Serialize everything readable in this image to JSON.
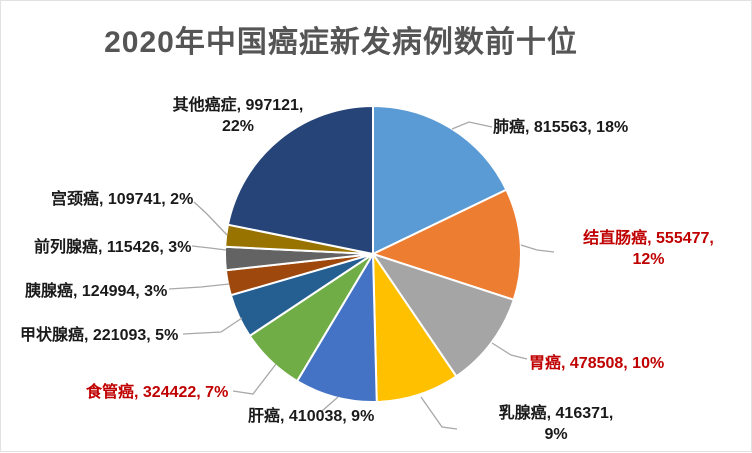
{
  "chart_data": {
    "type": "pie",
    "title": "2020年中国癌症新发病例数前十位",
    "start_angle_deg": 0,
    "direction": "clockwise",
    "legend": "none",
    "leader_line_color": "#A8A8A8",
    "highlight_label_color": "#C00000",
    "default_label_color": "#1A1A1A",
    "slices": [
      {
        "name": "肺癌",
        "value": 815563,
        "percent": "18%",
        "color": "#5B9BD5",
        "label_color": "#1A1A1A",
        "label_lines": [
          "肺癌, 815563, 18%"
        ]
      },
      {
        "name": "结直肠癌",
        "value": 555477,
        "percent": "12%",
        "color": "#ED7D31",
        "label_color": "#C00000",
        "label_lines": [
          "结直肠癌, 555477,",
          "12%"
        ]
      },
      {
        "name": "胃癌",
        "value": 478508,
        "percent": "10%",
        "color": "#A5A5A5",
        "label_color": "#C00000",
        "label_lines": [
          "胃癌, 478508, 10%"
        ]
      },
      {
        "name": "乳腺癌",
        "value": 416371,
        "percent": "9%",
        "color": "#FFC000",
        "label_color": "#1A1A1A",
        "label_lines": [
          "乳腺癌, 416371,",
          "9%"
        ]
      },
      {
        "name": "肝癌",
        "value": 410038,
        "percent": "9%",
        "color": "#4472C4",
        "label_color": "#1A1A1A",
        "label_lines": [
          "肝癌, 410038, 9%"
        ]
      },
      {
        "name": "食管癌",
        "value": 324422,
        "percent": "7%",
        "color": "#70AD47",
        "label_color": "#C00000",
        "label_lines": [
          "食管癌, 324422, 7%"
        ]
      },
      {
        "name": "甲状腺癌",
        "value": 221093,
        "percent": "5%",
        "color": "#255E91",
        "label_color": "#1A1A1A",
        "label_lines": [
          "甲状腺癌, 221093, 5%"
        ]
      },
      {
        "name": "胰腺癌",
        "value": 124994,
        "percent": "3%",
        "color": "#9E480E",
        "label_color": "#1A1A1A",
        "label_lines": [
          "胰腺癌, 124994, 3%"
        ]
      },
      {
        "name": "前列腺癌",
        "value": 115426,
        "percent": "3%",
        "color": "#636363",
        "label_color": "#1A1A1A",
        "label_lines": [
          "前列腺癌, 115426, 3%"
        ]
      },
      {
        "name": "宫颈癌",
        "value": 109741,
        "percent": "2%",
        "color": "#997300",
        "label_color": "#1A1A1A",
        "label_lines": [
          "宫颈癌, 109741, 2%"
        ]
      },
      {
        "name": "其他癌症",
        "value": 997121,
        "percent": "22%",
        "color": "#264478",
        "label_color": "#1A1A1A",
        "label_lines": [
          "其他癌症, 997121,",
          "22%"
        ]
      }
    ]
  }
}
